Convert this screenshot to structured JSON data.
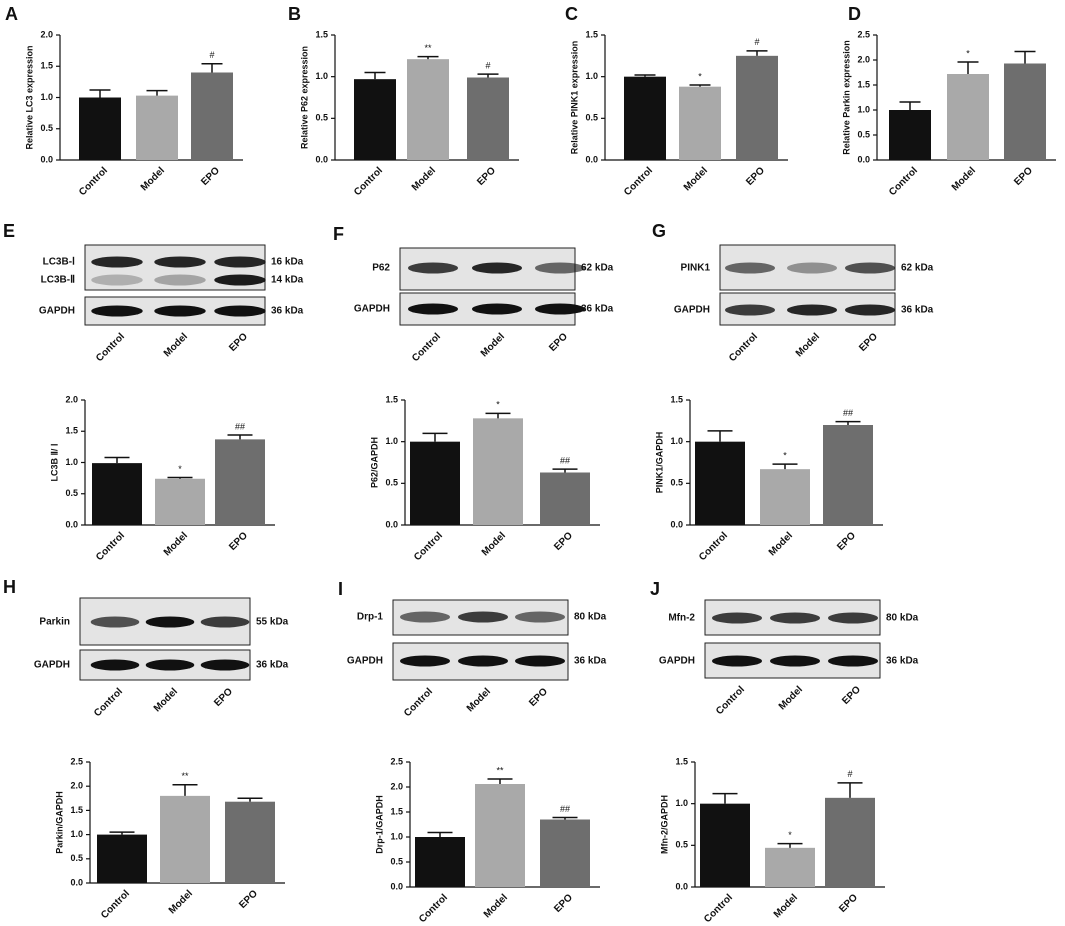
{
  "chart_data": [
    {
      "type": "bar",
      "panel": "A",
      "ylabel": "Relative LC3 expression",
      "categories": [
        "Control",
        "Model",
        "EPO"
      ],
      "values": [
        1.0,
        1.03,
        1.4
      ],
      "errors": [
        0.12,
        0.08,
        0.14
      ],
      "annotations": [
        null,
        null,
        "#"
      ],
      "colors": [
        "#111111",
        "#a9a9a9",
        "#6e6e6e"
      ],
      "ylim": [
        0,
        2
      ],
      "yticks": [
        {
          "value": 0,
          "label": "0.0"
        },
        0.5,
        {
          "value": 1,
          "label": "1.0"
        },
        1.5,
        {
          "value": 2,
          "label": "2.0"
        }
      ]
    },
    {
      "type": "bar",
      "panel": "B",
      "ylabel": "Relative P62  expression",
      "categories": [
        "Control",
        "Model",
        "EPO"
      ],
      "values": [
        0.97,
        1.21,
        0.99
      ],
      "errors": [
        0.08,
        0.03,
        0.04
      ],
      "annotations": [
        null,
        "**",
        "#"
      ],
      "colors": [
        "#111111",
        "#a9a9a9",
        "#6e6e6e"
      ],
      "ylim": [
        0,
        1.5
      ],
      "yticks": [
        {
          "value": 0,
          "label": "0.0"
        },
        0.5,
        {
          "value": 1,
          "label": "1.0"
        },
        1.5
      ]
    },
    {
      "type": "bar",
      "panel": "C",
      "ylabel": "Relative PINK1 expression",
      "categories": [
        "Control",
        "Model",
        "EPO"
      ],
      "values": [
        1.0,
        0.88,
        1.25
      ],
      "errors": [
        0.02,
        0.02,
        0.06
      ],
      "annotations": [
        null,
        "*",
        "#"
      ],
      "colors": [
        "#111111",
        "#a9a9a9",
        "#6e6e6e"
      ],
      "ylim": [
        0,
        1.5
      ],
      "yticks": [
        {
          "value": 0,
          "label": "0.0"
        },
        0.5,
        {
          "value": 1,
          "label": "1.0"
        },
        1.5
      ]
    },
    {
      "type": "bar",
      "panel": "D",
      "ylabel": "Relative Parkin expression",
      "categories": [
        "Control",
        "Model",
        "EPO"
      ],
      "values": [
        1.0,
        1.72,
        1.93
      ],
      "errors": [
        0.16,
        0.24,
        0.24
      ],
      "annotations": [
        null,
        "*",
        null
      ],
      "colors": [
        "#111111",
        "#a9a9a9",
        "#6e6e6e"
      ],
      "ylim": [
        0,
        2.5
      ],
      "yticks": [
        {
          "value": 0,
          "label": "0.0"
        },
        0.5,
        {
          "value": 1,
          "label": "1.0"
        },
        1.5,
        {
          "value": 2,
          "label": "2.0"
        },
        2.5
      ]
    },
    {
      "type": "bar",
      "ylabel": "LC3B Ⅱ/ Ⅰ",
      "categories": [
        "Control",
        "Model",
        "EPO"
      ],
      "values": [
        0.99,
        0.74,
        1.37
      ],
      "errors": [
        0.09,
        0.02,
        0.07
      ],
      "annotations": [
        null,
        "*",
        "##"
      ],
      "colors": [
        "#111111",
        "#a9a9a9",
        "#6e6e6e"
      ],
      "ylim": [
        0,
        2
      ],
      "yticks": [
        {
          "value": 0,
          "label": "0.0"
        },
        0.5,
        {
          "value": 1,
          "label": "1.0"
        },
        1.5,
        {
          "value": 2,
          "label": "2.0"
        }
      ]
    },
    {
      "type": "bar",
      "ylabel": "P62/GAPDH",
      "categories": [
        "Control",
        "Model",
        "EPO"
      ],
      "values": [
        1.0,
        1.28,
        0.63
      ],
      "errors": [
        0.1,
        0.06,
        0.04
      ],
      "annotations": [
        null,
        "*",
        "##"
      ],
      "colors": [
        "#111111",
        "#a9a9a9",
        "#6e6e6e"
      ],
      "ylim": [
        0,
        1.5
      ],
      "yticks": [
        {
          "value": 0,
          "label": "0.0"
        },
        0.5,
        {
          "value": 1,
          "label": "1.0"
        },
        1.5
      ]
    },
    {
      "type": "bar",
      "ylabel": "PINK1/GAPDH",
      "categories": [
        "Control",
        "Model",
        "EPO"
      ],
      "values": [
        1.0,
        0.67,
        1.2
      ],
      "errors": [
        0.13,
        0.06,
        0.04
      ],
      "annotations": [
        null,
        "*",
        "##"
      ],
      "colors": [
        "#111111",
        "#a9a9a9",
        "#6e6e6e"
      ],
      "ylim": [
        0,
        1.5
      ],
      "yticks": [
        {
          "value": 0,
          "label": "0.0"
        },
        0.5,
        {
          "value": 1,
          "label": "1.0"
        },
        1.5
      ]
    },
    {
      "type": "bar",
      "ylabel": "Parkin/GAPDH",
      "categories": [
        "Control",
        "Model",
        "EPO"
      ],
      "values": [
        1.0,
        1.8,
        1.68
      ],
      "errors": [
        0.05,
        0.23,
        0.07
      ],
      "annotations": [
        null,
        "**",
        null
      ],
      "colors": [
        "#111111",
        "#a9a9a9",
        "#6e6e6e"
      ],
      "ylim": [
        0,
        2.5
      ],
      "yticks": [
        {
          "value": 0,
          "label": "0.0"
        },
        0.5,
        {
          "value": 1,
          "label": "1.0"
        },
        1.5,
        {
          "value": 2,
          "label": "2.0"
        },
        2.5
      ]
    },
    {
      "type": "bar",
      "ylabel": "Drp-1/GAPDH",
      "categories": [
        "Control",
        "Model",
        "EPO"
      ],
      "values": [
        1.0,
        2.06,
        1.35
      ],
      "errors": [
        0.09,
        0.1,
        0.04
      ],
      "annotations": [
        null,
        "**",
        "##"
      ],
      "colors": [
        "#111111",
        "#a9a9a9",
        "#6e6e6e"
      ],
      "ylim": [
        0,
        2.5
      ],
      "yticks": [
        {
          "value": 0,
          "label": "0.0"
        },
        0.5,
        {
          "value": 1,
          "label": "1.0"
        },
        1.5,
        {
          "value": 2,
          "label": "2.0"
        },
        2.5
      ]
    },
    {
      "type": "bar",
      "ylabel": "Mfn-2/GAPDH",
      "categories": [
        "Control",
        "Model",
        "EPO"
      ],
      "values": [
        1.0,
        0.47,
        1.07
      ],
      "errors": [
        0.12,
        0.05,
        0.18
      ],
      "annotations": [
        null,
        "*",
        "#"
      ],
      "colors": [
        "#111111",
        "#a9a9a9",
        "#6e6e6e"
      ],
      "ylim": [
        0,
        1.5
      ],
      "yticks": [
        {
          "value": 0,
          "label": "0.0"
        },
        0.5,
        {
          "value": 1,
          "label": "1.0"
        },
        1.5
      ]
    }
  ],
  "blots": [
    {
      "panel": "E",
      "lanes": [
        "Control",
        "Model",
        "EPO"
      ],
      "rows": [
        {
          "labels": [
            "LC3B-Ⅰ",
            "LC3B-Ⅱ"
          ],
          "weights": [
            "16 kDa",
            "14 kDa"
          ]
        },
        {
          "labels": [
            "GAPDH"
          ],
          "weights": [
            "36 kDa"
          ]
        }
      ]
    },
    {
      "panel": "F",
      "lanes": [
        "Control",
        "Model",
        "EPO"
      ],
      "rows": [
        {
          "labels": [
            "P62"
          ],
          "weights": [
            "62 kDa"
          ]
        },
        {
          "labels": [
            "GAPDH"
          ],
          "weights": [
            "36 kDa"
          ]
        }
      ]
    },
    {
      "panel": "G",
      "lanes": [
        "Control",
        "Model",
        "EPO"
      ],
      "rows": [
        {
          "labels": [
            "PINK1"
          ],
          "weights": [
            "62 kDa"
          ]
        },
        {
          "labels": [
            "GAPDH"
          ],
          "weights": [
            "36 kDa"
          ]
        }
      ]
    },
    {
      "panel": "H",
      "lanes": [
        "Control",
        "Model",
        "EPO"
      ],
      "rows": [
        {
          "labels": [
            "Parkin"
          ],
          "weights": [
            "55 kDa"
          ]
        },
        {
          "labels": [
            "GAPDH"
          ],
          "weights": [
            "36 kDa"
          ]
        }
      ]
    },
    {
      "panel": "I",
      "lanes": [
        "Control",
        "Model",
        "EPO"
      ],
      "rows": [
        {
          "labels": [
            "Drp-1"
          ],
          "weights": [
            "80 kDa"
          ]
        },
        {
          "labels": [
            "GAPDH"
          ],
          "weights": [
            "36 kDa"
          ]
        }
      ]
    },
    {
      "panel": "J",
      "lanes": [
        "Control",
        "Model",
        "EPO"
      ],
      "rows": [
        {
          "labels": [
            "Mfn-2"
          ],
          "weights": [
            "80 kDa"
          ]
        },
        {
          "labels": [
            "GAPDH"
          ],
          "weights": [
            "36 kDa"
          ]
        }
      ]
    }
  ]
}
